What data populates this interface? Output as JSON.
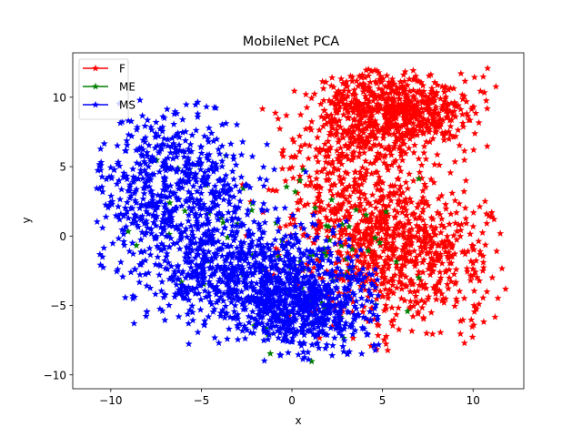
{
  "chart_data": {
    "type": "scatter",
    "title": "MobileNet PCA",
    "xlabel": "x",
    "ylabel": "y",
    "xlim": [
      -12.1,
      12.8
    ],
    "ylim": [
      -11.0,
      13.2
    ],
    "xticks": [
      -10,
      -5,
      0,
      5,
      10
    ],
    "yticks": [
      -10,
      -5,
      0,
      5,
      10
    ],
    "grid": false,
    "legend_position": "top-left",
    "marker": "star",
    "series": [
      {
        "name": "F",
        "color": "#ff0000",
        "clusters": [
          {
            "cx": 5.6,
            "cy": 8.9,
            "sx": 2.2,
            "sy": 1.5,
            "weight": 0.38
          },
          {
            "cx": 6.0,
            "cy": -1.2,
            "sx": 2.5,
            "sy": 2.7,
            "weight": 0.42
          },
          {
            "cx": 3.0,
            "cy": 3.5,
            "sx": 2.0,
            "sy": 2.8,
            "weight": 0.2
          }
        ],
        "x_range": [
          -3.0,
          11.9
        ],
        "y_range": [
          -8.6,
          12.1
        ]
      },
      {
        "name": "ME",
        "color": "#008000",
        "clusters": [
          {
            "cx": -4.5,
            "cy": 2.0,
            "sx": 2.8,
            "sy": 2.5,
            "weight": 0.35
          },
          {
            "cx": 1.5,
            "cy": -3.0,
            "sx": 2.5,
            "sy": 3.0,
            "weight": 0.4
          },
          {
            "cx": 4.5,
            "cy": -1.0,
            "sx": 2.5,
            "sy": 2.5,
            "weight": 0.25
          }
        ],
        "x_range": [
          -10.3,
          7.6
        ],
        "y_range": [
          -9.8,
          7.2
        ]
      },
      {
        "name": "MS",
        "color": "#0000ff",
        "clusters": [
          {
            "cx": -6.8,
            "cy": 3.4,
            "sx": 2.3,
            "sy": 2.8,
            "weight": 0.34
          },
          {
            "cx": -2.8,
            "cy": -2.6,
            "sx": 2.4,
            "sy": 2.0,
            "weight": 0.33
          },
          {
            "cx": 1.0,
            "cy": -4.8,
            "sx": 2.0,
            "sy": 1.8,
            "weight": 0.33
          }
        ],
        "x_range": [
          -10.8,
          4.8
        ],
        "y_range": [
          -9.0,
          9.8
        ]
      }
    ]
  }
}
